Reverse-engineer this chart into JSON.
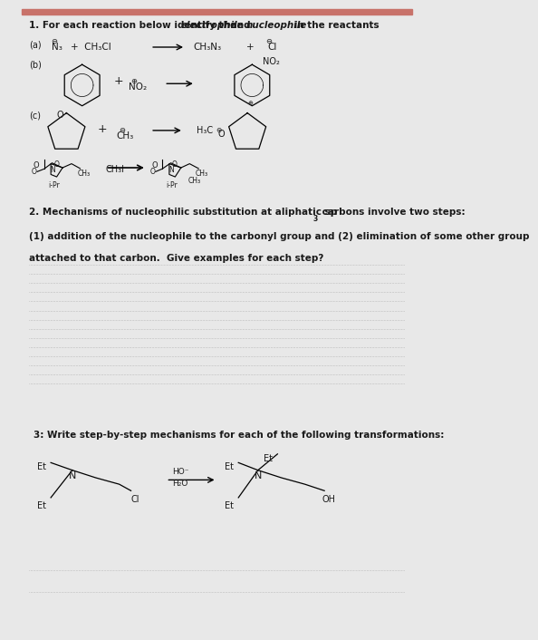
{
  "bg_color": "#ffffff",
  "page_bg": "#e8e8e8",
  "top_bar_color": "#c8726a",
  "separator_color": "#bbbbbb",
  "dotted_line_color": "#999999",
  "text_color": "#1a1a1a",
  "section1_pre": "1. For each reaction below identify the ",
  "section1_italic1": "electrophile",
  "section1_mid": " and ",
  "section1_italic2": "nucleophile",
  "section1_end": " in the reactants",
  "section2_line1_pre": "2. Mechanisms of nucleophilic substitution at aliphatic sp",
  "section2_line1_sup": "3",
  "section2_line1_post": " carbons involve two steps:",
  "section2_line2": "(1) addition of the nucleophile to the carbonyl group and (2) elimination of some other group",
  "section2_line3": "attached to that carbon.  Give examples for each step?",
  "section3_title": "3: Write step-by-step mechanisms for each of the following transformations:",
  "num_dotted_lines_q2": 14,
  "num_dotted_lines_q3": 2,
  "fontsize_main": 7.5,
  "fontsize_label": 7.0,
  "fontsize_chem": 7.5,
  "fontsize_small": 6.0
}
